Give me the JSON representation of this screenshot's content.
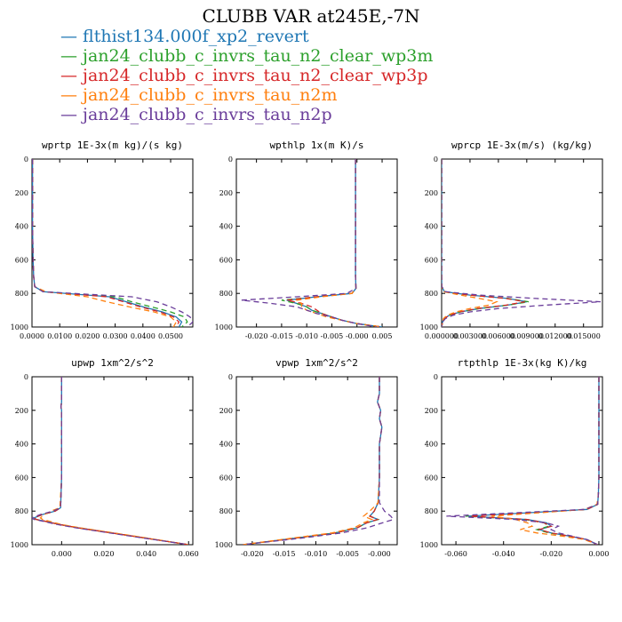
{
  "title": "CLUBB VAR at245E,-7N",
  "legend": [
    {
      "name": "flthist134.000f_xp2_revert",
      "color": "#1f77b4",
      "dash": "solid"
    },
    {
      "name": "jan24_clubb_c_invrs_tau_n2_clear_wp3m",
      "color": "#2ca02c",
      "dash": "6,4"
    },
    {
      "name": "jan24_clubb_c_invrs_tau_n2_clear_wp3p",
      "color": "#d62728",
      "dash": "6,4"
    },
    {
      "name": "jan24_clubb_c_invrs_tau_n2m",
      "color": "#ff7f0e",
      "dash": "6,4"
    },
    {
      "name": "jan24_clubb_c_invrs_tau_n2p",
      "color": "#6a3d9a",
      "dash": "6,4"
    }
  ],
  "chart_data": [
    {
      "type": "line",
      "title": "wprtp  1E-3x(m kg)/(s kg)",
      "xlim": [
        0.0,
        0.058
      ],
      "ylim": [
        1000,
        0
      ],
      "grid": false,
      "xticks": [
        "0.0000",
        "0.0100",
        "0.0200",
        "0.0300",
        "0.0400",
        "0.0500"
      ],
      "xtick_values": [
        0.0,
        0.01,
        0.02,
        0.03,
        0.04,
        0.05
      ],
      "yticks": [
        0,
        200,
        400,
        600,
        800,
        1000
      ],
      "y": [
        0,
        100,
        200,
        300,
        400,
        500,
        600,
        700,
        760,
        790,
        820,
        850,
        880,
        910,
        940,
        970,
        1000
      ],
      "series": [
        {
          "values": [
            0.0002,
            0.0002,
            0.0002,
            0.0002,
            0.0002,
            0.0003,
            0.0004,
            0.0006,
            0.001,
            0.004,
            0.028,
            0.034,
            0.04,
            0.047,
            0.052,
            0.054,
            0.053
          ]
        },
        {
          "values": [
            0.0002,
            0.0002,
            0.0002,
            0.0002,
            0.0002,
            0.0003,
            0.0004,
            0.0006,
            0.001,
            0.004,
            0.03,
            0.036,
            0.043,
            0.05,
            0.055,
            0.056,
            0.054
          ]
        },
        {
          "values": [
            0.0002,
            0.0002,
            0.0002,
            0.0002,
            0.0002,
            0.0003,
            0.0004,
            0.0006,
            0.001,
            0.004,
            0.027,
            0.033,
            0.039,
            0.046,
            0.051,
            0.053,
            0.052
          ]
        },
        {
          "values": [
            0.0002,
            0.0002,
            0.0002,
            0.0002,
            0.0002,
            0.0003,
            0.0004,
            0.0006,
            0.001,
            0.005,
            0.02,
            0.027,
            0.035,
            0.044,
            0.05,
            0.052,
            0.051
          ]
        },
        {
          "values": [
            0.0002,
            0.0002,
            0.0002,
            0.0002,
            0.0002,
            0.0003,
            0.0004,
            0.0006,
            0.001,
            0.004,
            0.036,
            0.045,
            0.05,
            0.054,
            0.057,
            0.058,
            0.056
          ]
        }
      ]
    },
    {
      "type": "line",
      "title": "wpthlp  1x(m K)/s",
      "xlim": [
        -0.024,
        0.008
      ],
      "ylim": [
        1000,
        0
      ],
      "grid": false,
      "xticks": [
        "-0.020",
        "-0.015",
        "-0.010",
        "-0.005",
        "-0.000",
        "0.005"
      ],
      "xtick_values": [
        -0.02,
        -0.015,
        -0.01,
        -0.005,
        0.0,
        0.005
      ],
      "yticks": [
        0,
        200,
        400,
        600,
        800,
        1000
      ],
      "y": [
        0,
        200,
        400,
        600,
        700,
        770,
        800,
        820,
        840,
        860,
        880,
        900,
        920,
        940,
        960,
        980,
        1000
      ],
      "series": [
        {
          "values": [
            -0.0003,
            -0.0003,
            -0.0003,
            -0.0003,
            -0.0003,
            -0.0002,
            -0.001,
            -0.008,
            -0.014,
            -0.012,
            -0.01,
            -0.009,
            -0.007,
            -0.005,
            -0.003,
            0.0,
            0.005
          ]
        },
        {
          "values": [
            -0.0003,
            -0.0003,
            -0.0003,
            -0.0003,
            -0.0003,
            -0.0002,
            -0.001,
            -0.008,
            -0.015,
            -0.012,
            -0.01,
            -0.009,
            -0.007,
            -0.005,
            -0.003,
            0.0,
            0.005
          ]
        },
        {
          "values": [
            -0.0003,
            -0.0003,
            -0.0003,
            -0.0003,
            -0.0003,
            -0.0002,
            -0.001,
            -0.008,
            -0.014,
            -0.011,
            -0.009,
            -0.008,
            -0.007,
            -0.005,
            -0.003,
            0.0,
            0.005
          ]
        },
        {
          "values": [
            -0.0003,
            -0.0003,
            -0.0003,
            -0.0003,
            -0.0003,
            -0.0002,
            -0.001,
            -0.007,
            -0.012,
            -0.011,
            -0.011,
            -0.01,
            -0.008,
            -0.006,
            -0.003,
            0.0,
            0.005
          ]
        },
        {
          "values": [
            -0.0003,
            -0.0003,
            -0.0003,
            -0.0003,
            -0.0003,
            -0.0002,
            -0.002,
            -0.012,
            -0.023,
            -0.017,
            -0.012,
            -0.01,
            -0.008,
            -0.005,
            -0.003,
            0.0,
            0.004
          ]
        }
      ]
    },
    {
      "type": "line",
      "title": "wprcp  1E-3x(m/s) (kg/kg)",
      "xlim": [
        0.0,
        0.017
      ],
      "ylim": [
        1000,
        0
      ],
      "grid": false,
      "xticks": [
        "0.000000",
        "0.003000",
        "0.006000",
        "0.009000",
        "0.012000",
        "0.015000"
      ],
      "xtick_values": [
        0.0,
        0.003,
        0.006,
        0.009,
        0.012,
        0.015
      ],
      "yticks": [
        0,
        200,
        400,
        600,
        800,
        1000
      ],
      "y": [
        0,
        200,
        400,
        600,
        700,
        760,
        790,
        810,
        830,
        850,
        870,
        890,
        910,
        930,
        950,
        970,
        1000
      ],
      "series": [
        {
          "values": [
            0,
            0,
            0,
            0,
            0,
            2e-05,
            0.0003,
            0.003,
            0.007,
            0.009,
            0.007,
            0.004,
            0.002,
            0.0008,
            0.0003,
            0.0001,
            0.0
          ]
        },
        {
          "values": [
            0,
            0,
            0,
            0,
            0,
            2e-05,
            0.0003,
            0.003,
            0.007,
            0.0092,
            0.007,
            0.004,
            0.002,
            0.0008,
            0.0003,
            0.0001,
            0.0
          ]
        },
        {
          "values": [
            0,
            0,
            0,
            0,
            0,
            2e-05,
            0.0003,
            0.003,
            0.0068,
            0.0088,
            0.0068,
            0.0038,
            0.0019,
            0.0008,
            0.0003,
            0.0001,
            0.0
          ]
        },
        {
          "values": [
            0,
            0,
            0,
            0,
            0,
            2e-05,
            0.0002,
            0.002,
            0.004,
            0.0058,
            0.005,
            0.003,
            0.0015,
            0.0006,
            0.0002,
            0.0001,
            0.0
          ]
        },
        {
          "values": [
            0,
            0,
            0,
            0,
            0,
            2e-05,
            0.0004,
            0.004,
            0.01,
            0.0168,
            0.011,
            0.006,
            0.003,
            0.0012,
            0.0004,
            0.0001,
            0.0
          ]
        }
      ]
    },
    {
      "type": "line",
      "title": "upwp  1xm^2/s^2",
      "xlim": [
        -0.014,
        0.062
      ],
      "ylim": [
        1000,
        0
      ],
      "grid": false,
      "xticks": [
        "0.000",
        "0.020",
        "0.040",
        "0.060"
      ],
      "xtick_values": [
        0.0,
        0.02,
        0.04,
        0.06
      ],
      "yticks": [
        0,
        200,
        400,
        600,
        800,
        1000
      ],
      "y": [
        0,
        100,
        150,
        180,
        200,
        400,
        600,
        780,
        800,
        820,
        840,
        850,
        860,
        880,
        900,
        950,
        1000
      ],
      "series": [
        {
          "values": [
            0.0,
            0.0,
            0.0,
            -0.0003,
            0.0,
            0.0,
            0.0,
            -0.0005,
            -0.003,
            -0.009,
            -0.013,
            -0.012,
            -0.008,
            -0.001,
            0.008,
            0.034,
            0.06
          ]
        },
        {
          "values": [
            0.0,
            0.0,
            0.0,
            -0.0003,
            0.0,
            0.0,
            0.0,
            -0.0005,
            -0.003,
            -0.009,
            -0.013,
            -0.012,
            -0.008,
            -0.001,
            0.008,
            0.034,
            0.06
          ]
        },
        {
          "values": [
            0.0,
            0.0,
            0.0,
            -0.0003,
            0.0,
            0.0,
            0.0,
            -0.0005,
            -0.003,
            -0.009,
            -0.013,
            -0.012,
            -0.008,
            -0.001,
            0.008,
            0.034,
            0.06
          ]
        },
        {
          "values": [
            0.0,
            0.0,
            0.0,
            -0.0003,
            0.0,
            0.0,
            0.0,
            -0.0008,
            -0.005,
            -0.008,
            -0.01,
            -0.009,
            -0.006,
            0.0,
            0.009,
            0.035,
            0.06
          ]
        },
        {
          "values": [
            0.0,
            0.0,
            0.0,
            -0.0003,
            0.0,
            0.0,
            0.0,
            -0.0005,
            -0.004,
            -0.01,
            -0.014,
            -0.013,
            -0.009,
            -0.002,
            0.007,
            0.033,
            0.06
          ]
        }
      ]
    },
    {
      "type": "line",
      "title": "vpwp  1xm^2/s^2",
      "xlim": [
        -0.0225,
        0.0028
      ],
      "ylim": [
        1000,
        0
      ],
      "grid": false,
      "xticks": [
        "-0.020",
        "-0.015",
        "-0.010",
        "-0.005",
        "-0.000"
      ],
      "xtick_values": [
        -0.02,
        -0.015,
        -0.01,
        -0.005,
        0.0
      ],
      "yticks": [
        0,
        200,
        400,
        600,
        800,
        1000
      ],
      "y": [
        0,
        100,
        150,
        200,
        250,
        300,
        400,
        600,
        750,
        800,
        830,
        850,
        870,
        900,
        930,
        960,
        1000
      ],
      "series": [
        {
          "values": [
            0.0,
            0.0,
            -0.0003,
            0.0002,
            0.0,
            0.0004,
            0.0,
            0.0,
            -0.0002,
            -0.0008,
            -0.0015,
            -0.0002,
            -0.002,
            -0.0035,
            -0.007,
            -0.013,
            -0.0215
          ]
        },
        {
          "values": [
            0.0,
            0.0,
            -0.0003,
            0.0002,
            0.0,
            0.0004,
            0.0,
            0.0,
            -0.0002,
            -0.0008,
            -0.0015,
            -0.0002,
            -0.002,
            -0.0035,
            -0.007,
            -0.013,
            -0.0215
          ]
        },
        {
          "values": [
            0.0,
            0.0,
            -0.0003,
            0.0002,
            0.0,
            0.0004,
            0.0,
            0.0,
            -0.0002,
            -0.0008,
            -0.0015,
            -0.0003,
            -0.002,
            -0.0035,
            -0.007,
            -0.013,
            -0.0215
          ]
        },
        {
          "values": [
            0.0,
            0.0,
            -0.0003,
            0.0002,
            0.0,
            0.0004,
            0.0,
            0.0,
            -0.0002,
            -0.0015,
            -0.0025,
            -0.0012,
            -0.0025,
            -0.004,
            -0.0075,
            -0.0135,
            -0.0215
          ]
        },
        {
          "values": [
            0.0,
            0.0,
            -0.0003,
            0.0002,
            0.0,
            0.0004,
            0.0,
            0.0,
            0.0,
            0.0008,
            0.0018,
            0.0022,
            0.0005,
            -0.002,
            -0.006,
            -0.012,
            -0.0215
          ]
        }
      ]
    },
    {
      "type": "line",
      "title": "rtpthlp  1E-3x(kg K)/kg",
      "xlim": [
        -0.066,
        0.0015
      ],
      "ylim": [
        1000,
        0
      ],
      "grid": false,
      "xticks": [
        "-0.060",
        "-0.040",
        "-0.020",
        "0.000"
      ],
      "xtick_values": [
        -0.06,
        -0.04,
        -0.02,
        0.0
      ],
      "yticks": [
        0,
        200,
        400,
        600,
        800,
        1000
      ],
      "y": [
        0,
        200,
        400,
        600,
        700,
        760,
        790,
        810,
        830,
        850,
        870,
        890,
        910,
        930,
        950,
        970,
        1000
      ],
      "series": [
        {
          "values": [
            0.0,
            0.0,
            0.0,
            0.0,
            -0.0002,
            -0.0005,
            -0.005,
            -0.03,
            -0.055,
            -0.03,
            -0.022,
            -0.02,
            -0.025,
            -0.02,
            -0.012,
            -0.005,
            -0.0005
          ]
        },
        {
          "values": [
            0.0,
            0.0,
            0.0,
            0.0,
            -0.0002,
            -0.0005,
            -0.005,
            -0.03,
            -0.056,
            -0.031,
            -0.023,
            -0.021,
            -0.026,
            -0.021,
            -0.012,
            -0.005,
            -0.0005
          ]
        },
        {
          "values": [
            0.0,
            0.0,
            0.0,
            0.0,
            -0.0002,
            -0.0005,
            -0.005,
            -0.029,
            -0.054,
            -0.03,
            -0.023,
            -0.02,
            -0.025,
            -0.02,
            -0.012,
            -0.005,
            -0.0005
          ]
        },
        {
          "values": [
            0.0,
            0.0,
            0.0,
            0.0,
            -0.0002,
            -0.0008,
            -0.006,
            -0.025,
            -0.045,
            -0.035,
            -0.03,
            -0.028,
            -0.033,
            -0.026,
            -0.015,
            -0.006,
            -0.0005
          ]
        },
        {
          "values": [
            0.0,
            0.0,
            0.0,
            0.0,
            -0.0002,
            -0.0005,
            -0.006,
            -0.035,
            -0.064,
            -0.035,
            -0.022,
            -0.017,
            -0.02,
            -0.017,
            -0.011,
            -0.005,
            -0.0005
          ]
        }
      ]
    }
  ]
}
